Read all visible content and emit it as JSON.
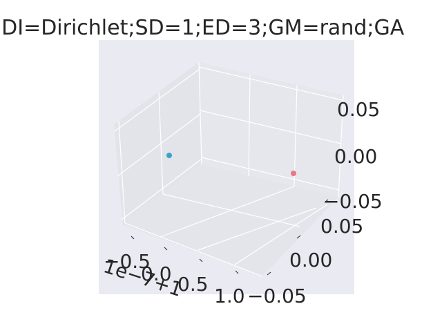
{
  "chart_data": {
    "type": "scatter",
    "projection": "3d",
    "title": ";DI=Dirichlet;SD=1;ED=3;GM=rand;GA",
    "x_ticks": [
      "−0.5",
      "0.0",
      "0.5",
      "1.0"
    ],
    "x_offset_label": "1e−7+1",
    "y_ticks": [
      "−0.05",
      "0.00",
      "0.05"
    ],
    "z_ticks": [
      "−0.05",
      "0.00",
      "0.05"
    ],
    "grid": true,
    "background": "#eaeaf2",
    "points": [
      {
        "x": -1.0,
        "y": 0.0,
        "z": 0.0,
        "color": "#3ba3c8"
      },
      {
        "x": 1.0,
        "y": 0.0,
        "z": 0.0,
        "color": "#e8758a"
      }
    ]
  }
}
